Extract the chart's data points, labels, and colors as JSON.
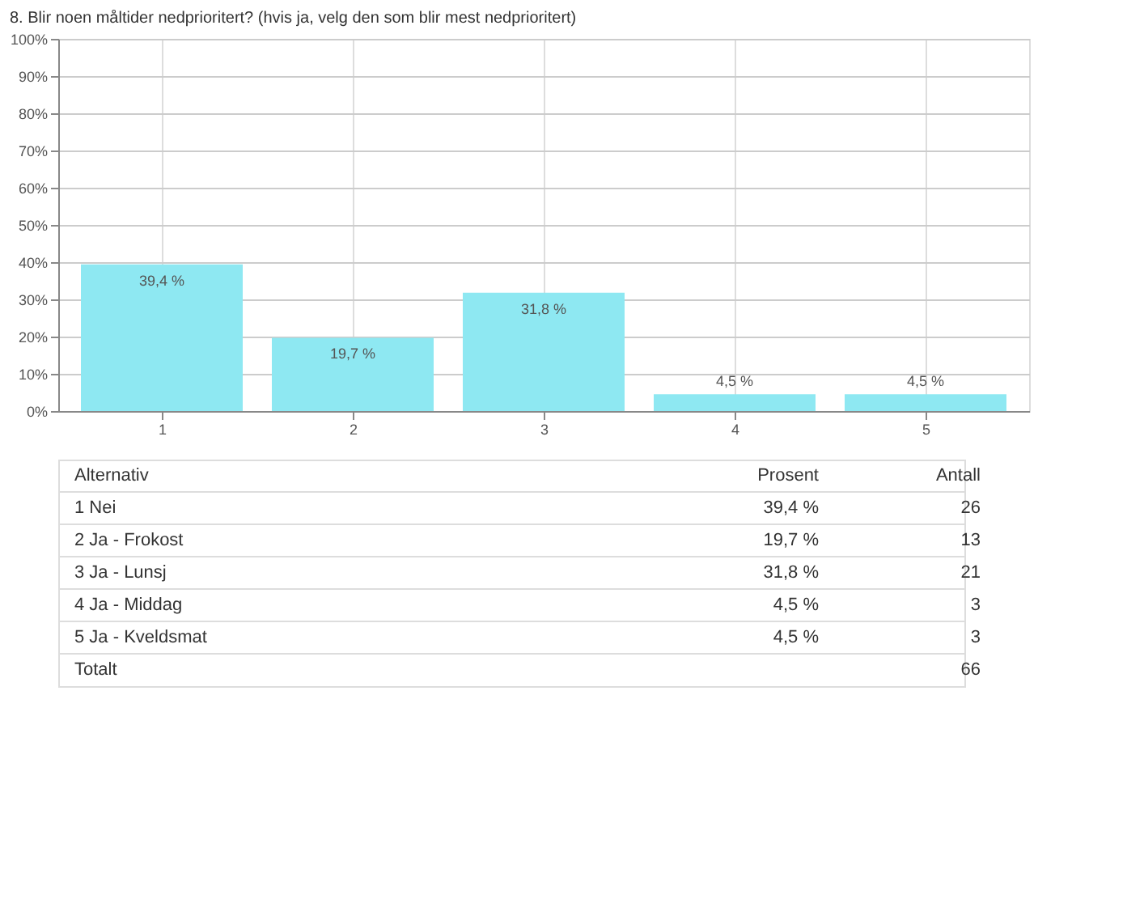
{
  "chart_data": {
    "type": "bar",
    "title": "8. Blir noen måltider nedprioritert? (hvis ja, velg den som blir mest nedprioritert)",
    "categories": [
      "1",
      "2",
      "3",
      "4",
      "5"
    ],
    "values": [
      39.4,
      19.7,
      31.8,
      4.5,
      4.5
    ],
    "value_labels": [
      "39,4 %",
      "19,7 %",
      "31,8 %",
      "4,5 %",
      "4,5 %"
    ],
    "color": "#8ee8f2",
    "ylim": [
      0,
      100
    ],
    "yticks": [
      {
        "value": 0,
        "label": "0%"
      },
      {
        "value": 10,
        "label": "10%"
      },
      {
        "value": 20,
        "label": "20%"
      },
      {
        "value": 30,
        "label": "30%"
      },
      {
        "value": 40,
        "label": "40%"
      },
      {
        "value": 50,
        "label": "50%"
      },
      {
        "value": 60,
        "label": "60%"
      },
      {
        "value": 70,
        "label": "70%"
      },
      {
        "value": 80,
        "label": "80%"
      },
      {
        "value": 90,
        "label": "90%"
      },
      {
        "value": 100,
        "label": "100%"
      }
    ],
    "grid": true,
    "annotations": [
      "Alternativ",
      "Prosent",
      "Antall",
      "1   Nei",
      "39,4 %",
      "26",
      "2   Ja - Frokost",
      "19,7 %",
      "13",
      "3   Ja - Lunsj",
      "31,8 %",
      "21",
      "4   Ja - Middag",
      "4,5 %",
      "3",
      "5   Ja - Kveldsmat",
      "4,5 %",
      "3",
      "Totalt",
      "66"
    ]
  }
}
